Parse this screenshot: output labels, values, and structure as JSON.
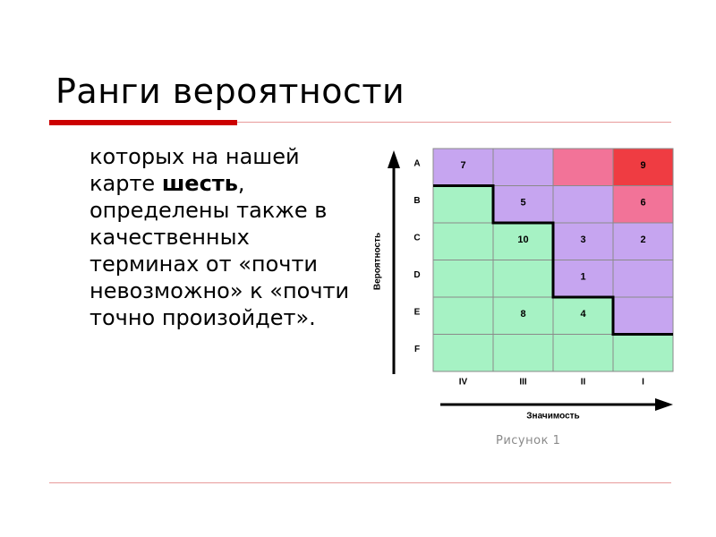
{
  "slide": {
    "title": "Ранги вероятности",
    "text_part1": "которых на нашей карте ",
    "text_bold": "шесть",
    "text_part2": ", определены также в качественных терминах от «почти невозможно» к «почти точно произойдет».",
    "caption": "Рисунок 1"
  },
  "matrix": {
    "y_axis_label": "Вероятность",
    "x_axis_label": "Значимость",
    "rows": [
      "A",
      "B",
      "C",
      "D",
      "E",
      "F"
    ],
    "cols": [
      "IV",
      "III",
      "II",
      "I"
    ],
    "colors": {
      "green": "#a6f2c4",
      "purple": "#c6a5f0",
      "pink": "#f27398",
      "red": "#ef3c42",
      "grid": "#8a8a8a",
      "boundary": "#000000"
    },
    "cells": [
      [
        {
          "c": "purple",
          "v": "7"
        },
        {
          "c": "purple",
          "v": ""
        },
        {
          "c": "pink",
          "v": ""
        },
        {
          "c": "red",
          "v": "9"
        }
      ],
      [
        {
          "c": "green",
          "v": ""
        },
        {
          "c": "purple",
          "v": "5"
        },
        {
          "c": "purple",
          "v": ""
        },
        {
          "c": "pink",
          "v": "6"
        }
      ],
      [
        {
          "c": "green",
          "v": ""
        },
        {
          "c": "green",
          "v": "10"
        },
        {
          "c": "purple",
          "v": "3"
        },
        {
          "c": "purple",
          "v": "2"
        }
      ],
      [
        {
          "c": "green",
          "v": ""
        },
        {
          "c": "green",
          "v": ""
        },
        {
          "c": "purple",
          "v": "1"
        },
        {
          "c": "purple",
          "v": ""
        }
      ],
      [
        {
          "c": "green",
          "v": ""
        },
        {
          "c": "green",
          "v": "8"
        },
        {
          "c": "green",
          "v": "4"
        },
        {
          "c": "purple",
          "v": ""
        }
      ],
      [
        {
          "c": "green",
          "v": ""
        },
        {
          "c": "green",
          "v": ""
        },
        {
          "c": "green",
          "v": ""
        },
        {
          "c": "green",
          "v": ""
        }
      ]
    ]
  }
}
